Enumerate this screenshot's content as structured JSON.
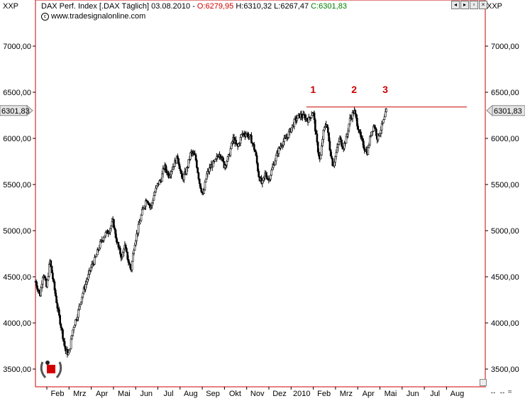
{
  "header": {
    "ticker": "XXP",
    "title": "DAX Perf. Index [.DAX  Täglich] 03.08.2010 - ",
    "open": "O:6279,95",
    "high_low": " H:6310,32 L:6267,47 ",
    "close": "C:6301,83",
    "source": "www.tradesignalonline.com",
    "right_ticker": "XXP"
  },
  "icons": [
    "copyright-icon",
    "arrow-left-icon",
    "arrow-right-icon",
    "maximize-icon",
    "close-icon",
    "laurel-logo-icon"
  ],
  "bottom_tools": [
    "↔",
    "↔",
    "≈"
  ],
  "colors": {
    "frame": "#cc0000",
    "candles": "#000000",
    "resistance_line": "#cc0000",
    "markers": "#cc0000",
    "price_box": "#e4e4e4"
  },
  "chart_data": {
    "type": "candlestick",
    "title": "DAX Perf. Index",
    "ylim": [
      3300,
      7400
    ],
    "yticks": [
      "3500,00",
      "4000,00",
      "4500,00",
      "5000,00",
      "5500,00",
      "6000,00",
      "6500,00",
      "7000,00"
    ],
    "ytick_values": [
      3500,
      4000,
      4500,
      5000,
      5500,
      6000,
      6500,
      7000
    ],
    "xticks": [
      "Feb",
      "Mrz",
      "Apr",
      "Mai",
      "Jun",
      "Jul",
      "Aug",
      "Sep",
      "Okt",
      "Nov",
      "Dez",
      "2010",
      "Feb",
      "Mrz",
      "Apr",
      "Mai",
      "Jun",
      "Jul",
      "Aug"
    ],
    "last_price_label": "6301,83",
    "last_price": 6301.83,
    "resistance_level": 6340,
    "markers": [
      {
        "label": "1",
        "date_index": 12.5
      },
      {
        "label": "2",
        "date_index": 14.35
      },
      {
        "label": "3",
        "date_index": 15.75
      }
    ],
    "series_points": [
      [
        0.0,
        4450
      ],
      [
        0.2,
        4300
      ],
      [
        0.35,
        4550
      ],
      [
        0.5,
        4380
      ],
      [
        0.65,
        4680
      ],
      [
        0.8,
        4450
      ],
      [
        1.0,
        4150
      ],
      [
        1.2,
        3900
      ],
      [
        1.35,
        3700
      ],
      [
        1.5,
        3660
      ],
      [
        1.7,
        3950
      ],
      [
        1.9,
        4100
      ],
      [
        2.1,
        4300
      ],
      [
        2.3,
        4450
      ],
      [
        2.5,
        4600
      ],
      [
        2.7,
        4700
      ],
      [
        2.9,
        4850
      ],
      [
        3.1,
        4950
      ],
      [
        3.3,
        5000
      ],
      [
        3.5,
        5100
      ],
      [
        3.6,
        4950
      ],
      [
        3.75,
        4800
      ],
      [
        3.9,
        4700
      ],
      [
        4.0,
        4850
      ],
      [
        4.2,
        4650
      ],
      [
        4.3,
        4570
      ],
      [
        4.45,
        4850
      ],
      [
        4.6,
        5000
      ],
      [
        4.8,
        5200
      ],
      [
        5.0,
        5350
      ],
      [
        5.2,
        5250
      ],
      [
        5.35,
        5400
      ],
      [
        5.5,
        5500
      ],
      [
        5.65,
        5550
      ],
      [
        5.8,
        5700
      ],
      [
        6.0,
        5600
      ],
      [
        6.2,
        5700
      ],
      [
        6.4,
        5800
      ],
      [
        6.6,
        5550
      ],
      [
        6.8,
        5650
      ],
      [
        7.0,
        5850
      ],
      [
        7.2,
        5800
      ],
      [
        7.4,
        5500
      ],
      [
        7.55,
        5380
      ],
      [
        7.7,
        5600
      ],
      [
        7.9,
        5700
      ],
      [
        8.1,
        5750
      ],
      [
        8.3,
        5850
      ],
      [
        8.5,
        5700
      ],
      [
        8.7,
        5800
      ],
      [
        8.9,
        6000
      ],
      [
        9.1,
        5900
      ],
      [
        9.3,
        6050
      ],
      [
        9.5,
        6050
      ],
      [
        9.7,
        6000
      ],
      [
        9.9,
        5850
      ],
      [
        10.05,
        5600
      ],
      [
        10.2,
        5500
      ],
      [
        10.35,
        5620
      ],
      [
        10.5,
        5550
      ],
      [
        10.7,
        5700
      ],
      [
        10.9,
        5850
      ],
      [
        11.1,
        5950
      ],
      [
        11.3,
        6000
      ],
      [
        11.5,
        6100
      ],
      [
        11.7,
        6200
      ],
      [
        11.9,
        6250
      ],
      [
        12.1,
        6230
      ],
      [
        12.3,
        6200
      ],
      [
        12.5,
        6300
      ],
      [
        12.6,
        6100
      ],
      [
        12.7,
        5900
      ],
      [
        12.82,
        5750
      ],
      [
        12.95,
        6050
      ],
      [
        13.1,
        6180
      ],
      [
        13.25,
        5900
      ],
      [
        13.4,
        5700
      ],
      [
        13.55,
        5850
      ],
      [
        13.7,
        6000
      ],
      [
        13.85,
        5900
      ],
      [
        14.0,
        6000
      ],
      [
        14.15,
        6200
      ],
      [
        14.35,
        6300
      ],
      [
        14.5,
        6150
      ],
      [
        14.65,
        6000
      ],
      [
        14.8,
        5900
      ],
      [
        14.95,
        5850
      ],
      [
        15.1,
        6050
      ],
      [
        15.25,
        6150
      ],
      [
        15.4,
        6000
      ],
      [
        15.55,
        6100
      ],
      [
        15.7,
        6200
      ],
      [
        15.8,
        6300
      ]
    ]
  }
}
